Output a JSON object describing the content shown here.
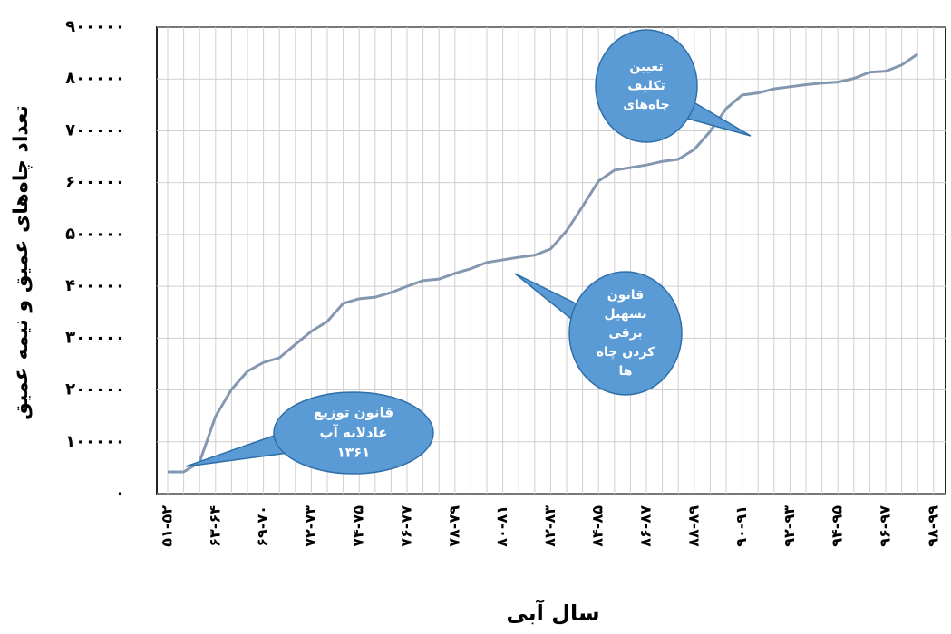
{
  "chart_data": {
    "type": "line",
    "y_label": "تعداد چاه‌های عمیق و نیمه عمیق",
    "x_label": "سال آبی",
    "categories": [
      "۵۱-۵۲",
      null,
      null,
      "۶۳-۶۴",
      null,
      null,
      "۶۹-۷۰",
      null,
      null,
      "۷۲-۷۳",
      null,
      null,
      "۷۴-۷۵",
      null,
      null,
      "۷۶-۷۷",
      null,
      null,
      "۷۸-۷۹",
      null,
      null,
      "۸۰-۸۱",
      null,
      null,
      "۸۲-۸۳",
      null,
      null,
      "۸۴-۸۵",
      null,
      null,
      "۸۶-۸۷",
      null,
      null,
      "۸۸-۸۹",
      null,
      null,
      "۹۰-۹۱",
      null,
      null,
      "۹۲-۹۳",
      null,
      null,
      "۹۴-۹۵",
      null,
      null,
      "۹۶-۹۷",
      null,
      null,
      "۹۸-۹۹"
    ],
    "series": [
      {
        "color": "#8497b0",
        "values": [
          42000,
          42000,
          61000,
          149000,
          201000,
          236000,
          253000,
          262000,
          288000,
          313000,
          332000,
          367000,
          376000,
          379000,
          388000,
          400000,
          411000,
          414000,
          425000,
          434000,
          446000,
          451000,
          456000,
          460000,
          472000,
          507000,
          554000,
          603000,
          624000,
          629000,
          634000,
          641000,
          645000,
          664000,
          699000,
          743000,
          769000,
          773000,
          781000,
          785000,
          789000,
          792000,
          794000,
          801000,
          813000,
          815000,
          827000,
          848000,
          null
        ]
      }
    ],
    "ylim": [
      0,
      900000
    ],
    "yticks": [
      {
        "value": 0,
        "label": "۰"
      },
      {
        "value": 100000,
        "label": "۱۰۰۰۰۰"
      },
      {
        "value": 200000,
        "label": "۲۰۰۰۰۰"
      },
      {
        "value": 300000,
        "label": "۳۰۰۰۰۰"
      },
      {
        "value": 400000,
        "label": "۴۰۰۰۰۰"
      },
      {
        "value": 500000,
        "label": "۵۰۰۰۰۰"
      },
      {
        "value": 600000,
        "label": "۶۰۰۰۰۰"
      },
      {
        "value": 700000,
        "label": "۷۰۰۰۰۰"
      },
      {
        "value": 800000,
        "label": "۸۰۰۰۰۰"
      },
      {
        "value": 900000,
        "label": "۹۰۰۰۰۰"
      }
    ],
    "grid": true,
    "annotations": [
      {
        "lines": [
          "قانون توزیع",
          "عادلانه آب",
          "۱۳۶۱"
        ]
      },
      {
        "lines": [
          "قانون",
          "تسهیل",
          "برقی",
          "کردن چاه",
          "ها"
        ]
      },
      {
        "lines": [
          "تعیین",
          "تکلیف",
          "چاه‌های"
        ]
      }
    ]
  }
}
